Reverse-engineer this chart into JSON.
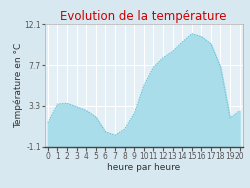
{
  "title": "Evolution de la température",
  "xlabel": "heure par heure",
  "ylabel": "Température en °C",
  "x": [
    0,
    1,
    2,
    3,
    4,
    5,
    6,
    7,
    8,
    9,
    10,
    11,
    12,
    13,
    14,
    15,
    16,
    17,
    18,
    19,
    20
  ],
  "y": [
    1.5,
    3.5,
    3.6,
    3.2,
    2.8,
    2.1,
    0.5,
    0.15,
    0.8,
    2.5,
    5.5,
    7.5,
    8.5,
    9.2,
    10.2,
    11.1,
    10.8,
    10.0,
    7.5,
    2.0,
    2.8
  ],
  "ylim": [
    -1.1,
    12.1
  ],
  "yticks": [
    -1.1,
    3.3,
    7.7,
    12.1
  ],
  "ytick_labels": [
    "-1.1",
    "3.3",
    "7.7",
    "12.1"
  ],
  "xtick_labels": [
    "0",
    "1",
    "2",
    "3",
    "4",
    "5",
    "6",
    "7",
    "8",
    "9",
    "10",
    "11",
    "12",
    "13",
    "14",
    "15",
    "16",
    "17",
    "18",
    "19",
    "20"
  ],
  "fill_color": "#a8dde9",
  "line_color": "#5ab8d4",
  "background_color": "#d8e8f0",
  "plot_bg_color": "#e4f0f6",
  "title_color": "#cc0000",
  "grid_color": "#ffffff",
  "title_fontsize": 8.5,
  "axis_label_fontsize": 6.5,
  "tick_fontsize": 5.5
}
